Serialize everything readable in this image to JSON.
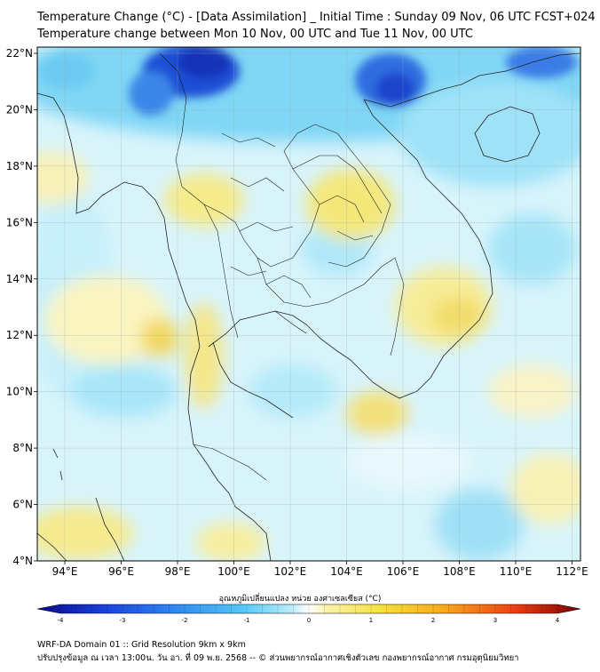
{
  "title_line1": "Temperature Change (°C) - [Data Assimilation] _ Initial Time : Sunday 09 Nov, 06 UTC FCST+024",
  "title_line2": "Temperature change between Mon 10 Nov, 00 UTC and Tue 11 Nov, 00 UTC",
  "lat_labels": [
    "22°N",
    "20°N",
    "18°N",
    "16°N",
    "14°N",
    "12°N",
    "10°N",
    "8°N",
    "6°N",
    "4°N"
  ],
  "lon_labels": [
    "94°E",
    "96°E",
    "98°E",
    "100°E",
    "102°E",
    "104°E",
    "106°E",
    "108°E",
    "110°E",
    "112°E"
  ],
  "colorbar": {
    "label": "อุณหภูมิเปลี่ยนแปลง หน่วย องศาเซลเซียส (°C)",
    "ticks": [
      "-4",
      "-3",
      "-2",
      "-1",
      "0",
      "1",
      "2",
      "3",
      "4"
    ],
    "min": -4,
    "max": 4,
    "colors": [
      "#0a0a8c",
      "#1a3fd8",
      "#2f86f0",
      "#56c8f5",
      "#bdeefb",
      "#ffffff",
      "#fbf3b0",
      "#f6e23c",
      "#f7a81e",
      "#ec3e14",
      "#7a0000"
    ]
  },
  "footer_line1": "WRF-DA Domain 01 :: Grid Resolution 9km x 9km",
  "footer_line2": "ปรับปรุงข้อมูล ณ เวลา 13:00น. วัน อา. ที่ 09 พ.ย. 2568 -- © ส่วนพยากรณ์อากาศเชิงตัวเลข กองพยากรณ์อากาศ กรมอุตุนิยมวิทยา"
}
